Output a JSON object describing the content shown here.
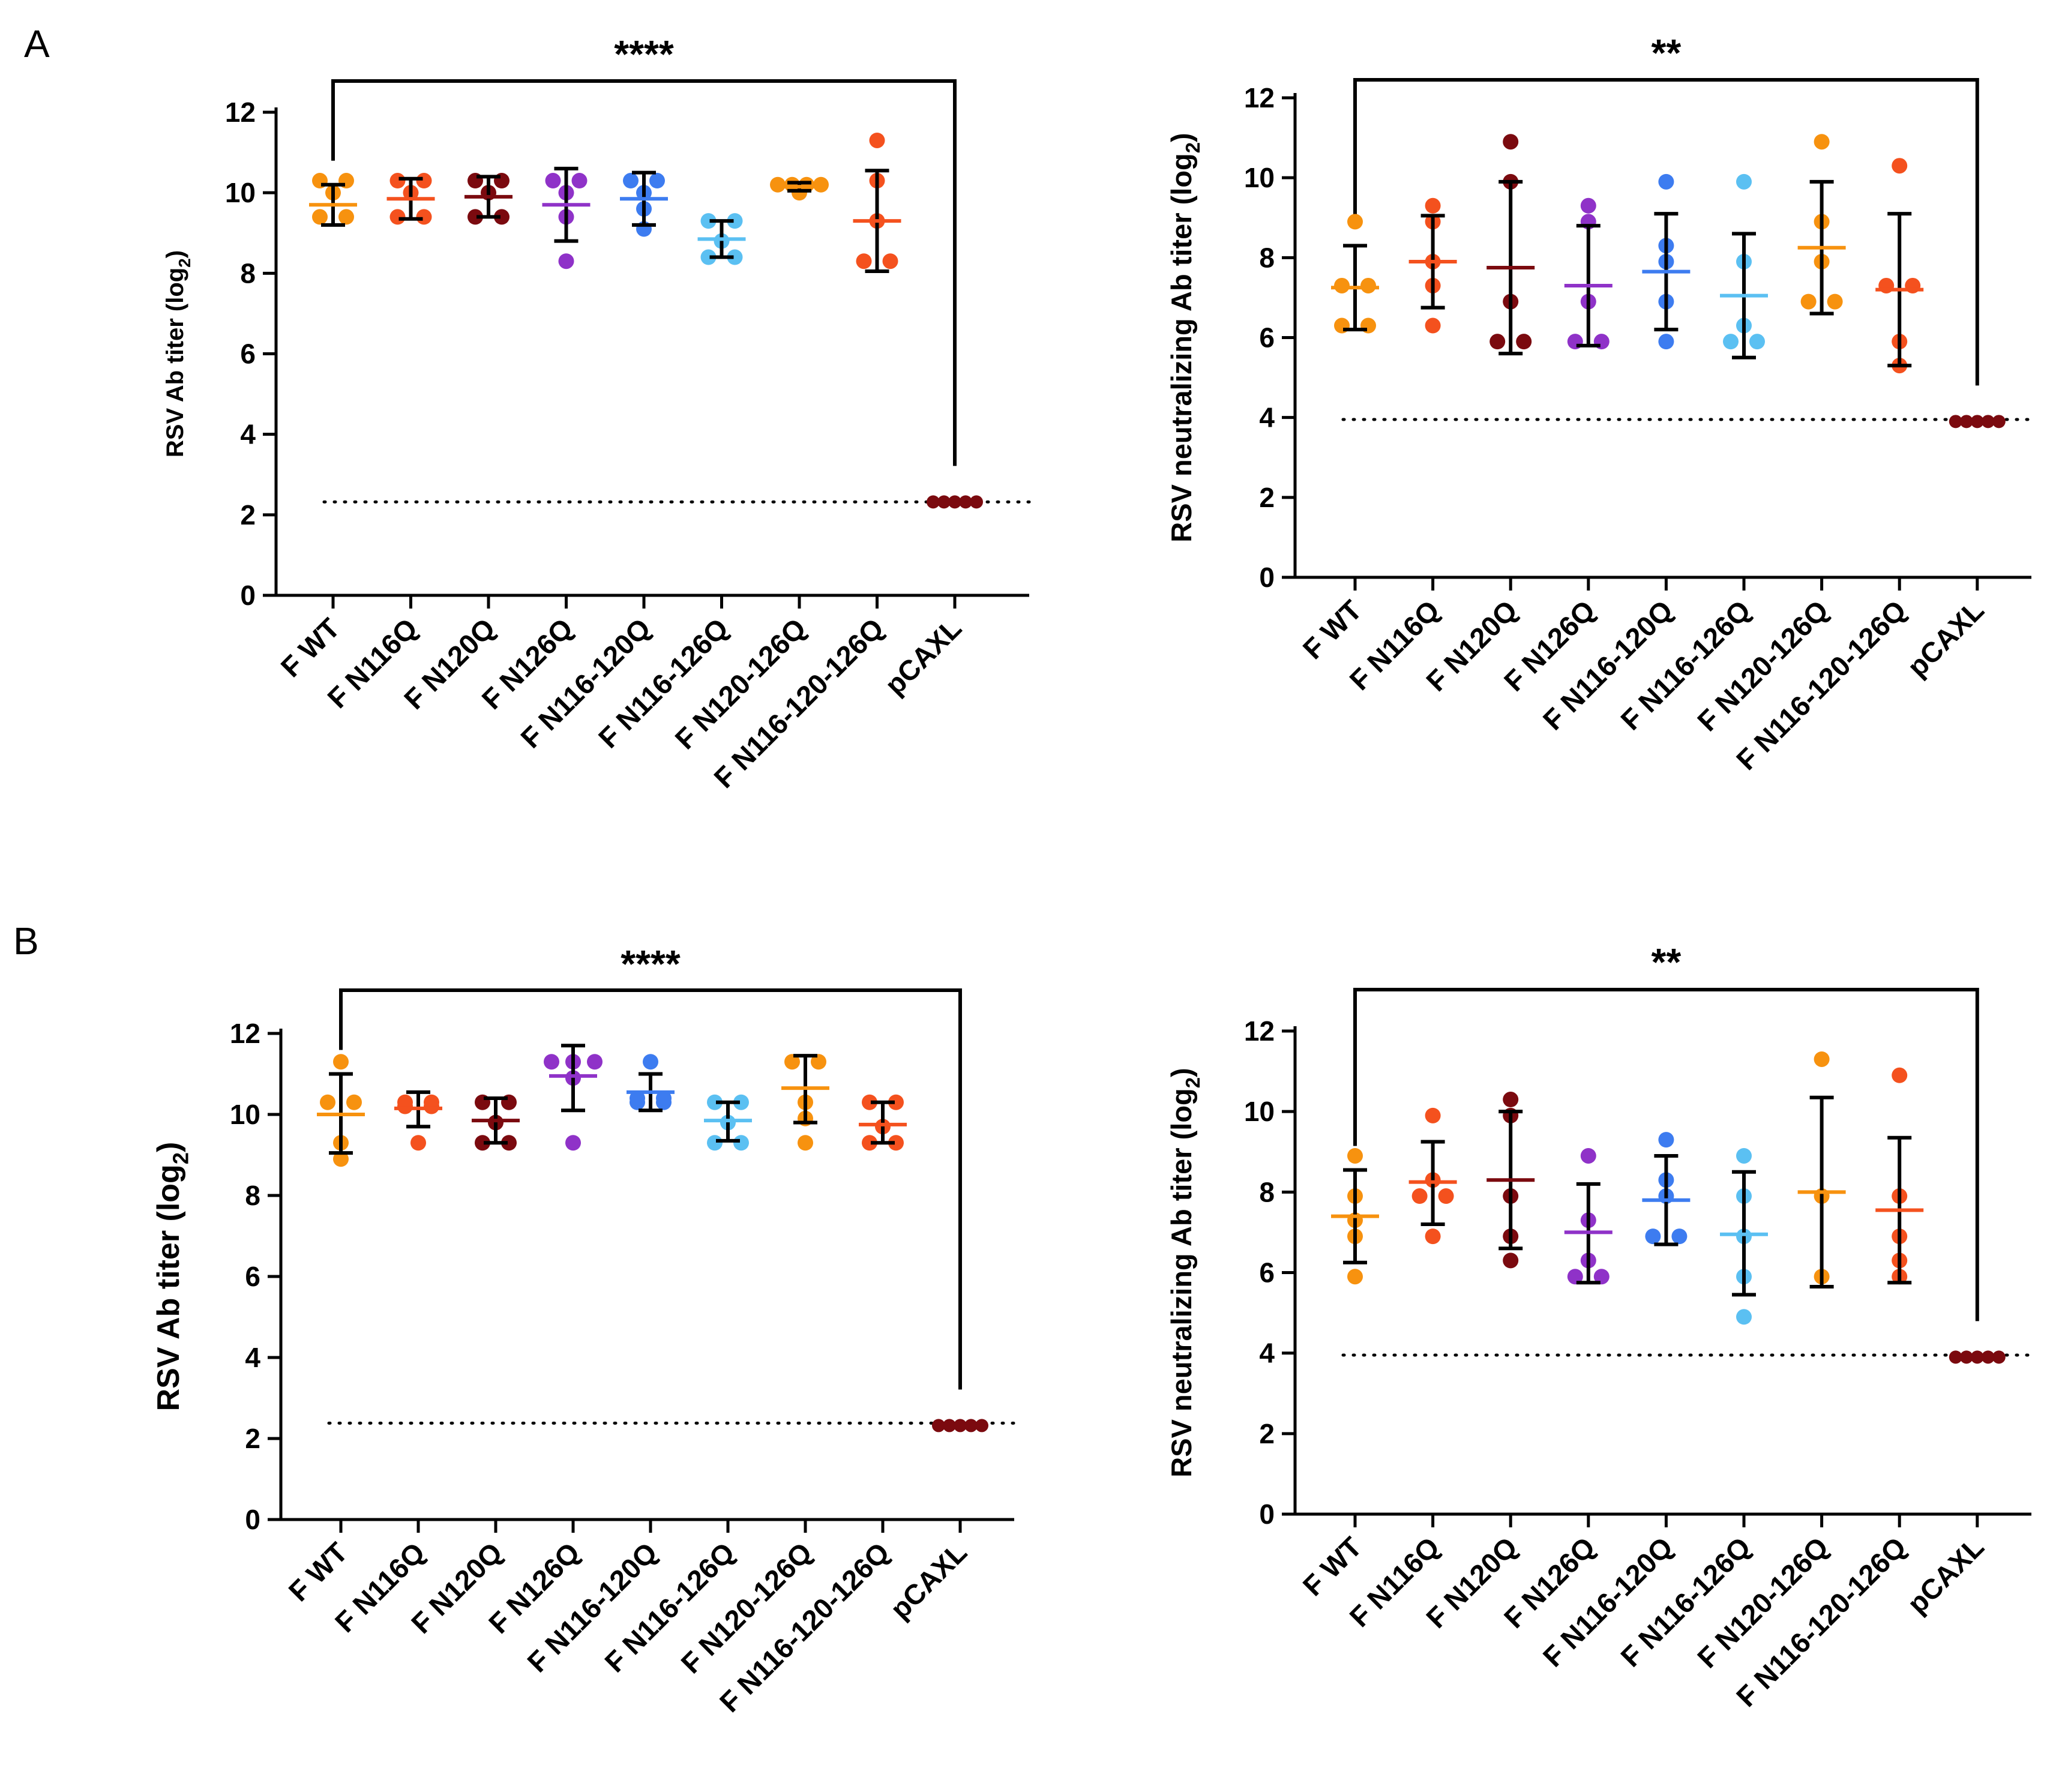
{
  "figure": {
    "panel_labels": [
      "A",
      "B"
    ]
  },
  "colors": {
    "F WT": "#F7920F",
    "F N116Q": "#F4511E",
    "F N120Q": "#7B0A0F",
    "F N126Q": "#8F32C8",
    "F N116-120Q": "#3D7CF0",
    "F N116-126Q": "#5BC0F2",
    "F N120-126Q": "#F7920F",
    "F N116-120-126Q": "#F4511E",
    "pCAXL": "#7B0A0F"
  },
  "chart_data": [
    {
      "id": "A-left",
      "panel": "A",
      "type": "scatter",
      "ylabel": "RSV Ab titer (log",
      "ylabel_sub": "2",
      "ylabel_close": ")",
      "ylim": [
        0,
        12
      ],
      "yticks": [
        0,
        2,
        4,
        6,
        8,
        10,
        12
      ],
      "categories": [
        "F WT",
        "F N116Q",
        "F N120Q",
        "F N126Q",
        "F N116-120Q",
        "F N116-126Q",
        "F N120-126Q",
        "F N116-120-126Q",
        "pCAXL"
      ],
      "points": [
        [
          9.4,
          9.4,
          10.0,
          10.3,
          10.3
        ],
        [
          9.4,
          9.4,
          10.0,
          10.3,
          10.3
        ],
        [
          9.4,
          9.4,
          10.0,
          10.3,
          10.3
        ],
        [
          8.3,
          9.4,
          10.0,
          10.3,
          10.3
        ],
        [
          9.1,
          9.6,
          10.0,
          10.3,
          10.3
        ],
        [
          8.4,
          8.4,
          8.8,
          9.3,
          9.3
        ],
        [
          10.0,
          10.2,
          10.2,
          10.2,
          10.2
        ],
        [
          8.3,
          8.3,
          9.3,
          10.3,
          11.3
        ],
        [
          2.32,
          2.32,
          2.32,
          2.32,
          2.32
        ]
      ],
      "mean": [
        9.7,
        9.85,
        9.9,
        9.7,
        9.85,
        8.85,
        10.15,
        9.3,
        2.32
      ],
      "sd_low": [
        9.2,
        9.35,
        9.4,
        8.8,
        9.2,
        8.4,
        10.05,
        8.05,
        2.32
      ],
      "sd_high": [
        10.2,
        10.35,
        10.4,
        10.6,
        10.5,
        9.3,
        10.25,
        10.55,
        2.32
      ],
      "dotted_line": 2.32,
      "significance": {
        "from": "F WT",
        "to": "pCAXL",
        "label": "****"
      }
    },
    {
      "id": "A-right",
      "panel": "A",
      "type": "scatter",
      "ylabel": "RSV neutralizing Ab titer (log",
      "ylabel_sub": "2",
      "ylabel_close": ")",
      "ylim": [
        0,
        12
      ],
      "yticks": [
        0,
        2,
        4,
        6,
        8,
        10,
        12
      ],
      "categories": [
        "F WT",
        "F N116Q",
        "F N120Q",
        "F N126Q",
        "F N116-120Q",
        "F N116-126Q",
        "F N120-126Q",
        "F N116-120-126Q",
        "pCAXL"
      ],
      "points": [
        [
          6.3,
          6.3,
          7.3,
          7.3,
          8.9
        ],
        [
          6.3,
          7.3,
          7.9,
          8.9,
          9.3
        ],
        [
          5.9,
          5.9,
          6.9,
          9.9,
          10.9
        ],
        [
          5.9,
          5.9,
          6.9,
          8.9,
          9.3
        ],
        [
          5.9,
          6.9,
          7.9,
          8.3,
          9.9
        ],
        [
          5.9,
          5.9,
          6.3,
          7.9,
          9.9
        ],
        [
          6.9,
          6.9,
          7.9,
          8.9,
          10.9
        ],
        [
          5.3,
          5.9,
          7.3,
          7.3,
          10.3
        ],
        [
          3.9,
          3.9,
          3.9,
          3.9,
          3.9
        ]
      ],
      "mean": [
        7.25,
        7.9,
        7.75,
        7.3,
        7.65,
        7.05,
        8.25,
        7.2,
        3.9
      ],
      "sd_low": [
        6.2,
        6.75,
        5.6,
        5.8,
        6.2,
        5.5,
        6.6,
        5.3,
        3.9
      ],
      "sd_high": [
        8.3,
        9.05,
        9.9,
        8.8,
        9.1,
        8.6,
        9.9,
        9.1,
        3.9
      ],
      "dotted_line": 3.95,
      "significance": {
        "from": "F WT",
        "to": "pCAXL",
        "label": "**"
      }
    },
    {
      "id": "B-left",
      "panel": "B",
      "type": "scatter",
      "ylabel": "RSV Ab titer (log",
      "ylabel_sub": "2",
      "ylabel_close": ")",
      "ylim": [
        0,
        12
      ],
      "yticks": [
        0,
        2,
        4,
        6,
        8,
        10,
        12
      ],
      "categories": [
        "F WT",
        "F N116Q",
        "F N120Q",
        "F N126Q",
        "F N116-120Q",
        "F N116-126Q",
        "F N120-126Q",
        "F N116-120-126Q",
        "pCAXL"
      ],
      "points": [
        [
          8.9,
          9.3,
          10.3,
          10.3,
          11.3
        ],
        [
          9.3,
          10.2,
          10.2,
          10.3,
          10.3
        ],
        [
          9.3,
          9.3,
          9.8,
          10.3,
          10.3
        ],
        [
          9.3,
          10.9,
          11.3,
          11.3,
          11.3
        ],
        [
          10.3,
          10.3,
          10.4,
          10.4,
          11.3
        ],
        [
          9.3,
          9.3,
          9.8,
          10.3,
          10.3
        ],
        [
          9.3,
          9.9,
          10.3,
          11.3,
          11.3
        ],
        [
          9.3,
          9.3,
          9.7,
          10.3,
          10.3
        ],
        [
          2.32,
          2.32,
          2.32,
          2.32,
          2.32
        ]
      ],
      "mean": [
        10.0,
        10.15,
        9.85,
        10.95,
        10.55,
        9.85,
        10.65,
        9.75,
        2.32
      ],
      "sd_low": [
        9.05,
        9.7,
        9.3,
        10.1,
        10.1,
        9.35,
        9.8,
        9.3,
        2.32
      ],
      "sd_high": [
        11.0,
        10.55,
        10.4,
        11.7,
        11.0,
        10.3,
        11.45,
        10.3,
        2.32
      ],
      "dotted_line": 2.38,
      "significance": {
        "from": "F WT",
        "to": "pCAXL",
        "label": "****"
      }
    },
    {
      "id": "B-right",
      "panel": "B",
      "type": "scatter",
      "ylabel": "RSV neutralizing Ab titer (log",
      "ylabel_sub": "2",
      "ylabel_close": ")",
      "ylim": [
        0,
        12
      ],
      "yticks": [
        0,
        2,
        4,
        6,
        8,
        10,
        12
      ],
      "categories": [
        "F WT",
        "F N116Q",
        "F N120Q",
        "F N126Q",
        "F N116-120Q",
        "F N116-126Q",
        "F N120-126Q",
        "F N116-120-126Q",
        "pCAXL"
      ],
      "points": [
        [
          5.9,
          6.9,
          7.3,
          7.9,
          8.9
        ],
        [
          6.9,
          7.9,
          7.9,
          8.3,
          9.9
        ],
        [
          6.3,
          6.9,
          7.9,
          9.9,
          10.3
        ],
        [
          5.9,
          5.9,
          6.3,
          7.3,
          8.9
        ],
        [
          6.9,
          6.9,
          7.9,
          8.3,
          9.3
        ],
        [
          4.9,
          5.9,
          6.9,
          7.9,
          8.9
        ],
        [
          5.9,
          7.9,
          11.3
        ],
        [
          5.9,
          6.3,
          6.9,
          7.9,
          10.9
        ],
        [
          3.9,
          3.9,
          3.9,
          3.9,
          3.9
        ]
      ],
      "mean": [
        7.4,
        8.25,
        8.3,
        7.0,
        7.8,
        6.95,
        8.0,
        7.55,
        3.9
      ],
      "sd_low": [
        6.25,
        7.2,
        6.6,
        5.75,
        6.7,
        5.45,
        5.65,
        5.75,
        3.9
      ],
      "sd_high": [
        8.55,
        9.25,
        10.0,
        8.2,
        8.9,
        8.5,
        10.35,
        9.35,
        3.9
      ],
      "dotted_line": 3.95,
      "significance": {
        "from": "F WT",
        "to": "pCAXL",
        "label": "**"
      }
    }
  ]
}
